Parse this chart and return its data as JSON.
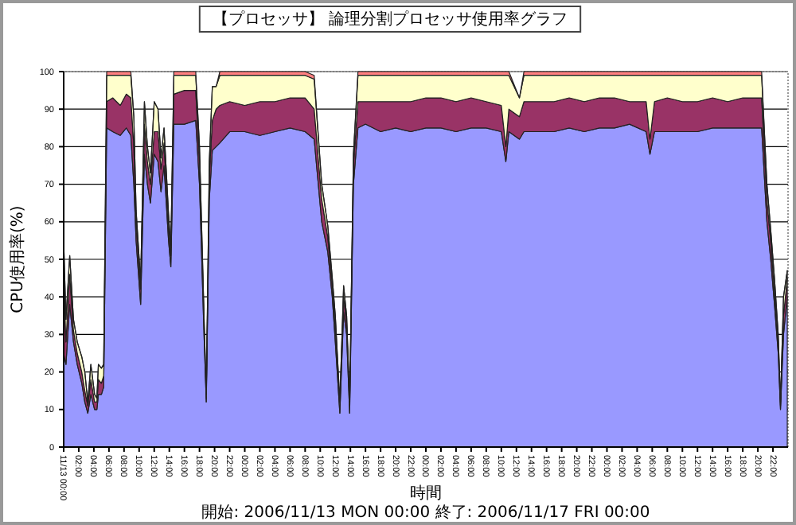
{
  "chart_data": {
    "type": "area",
    "stacked": true,
    "title": "【プロセッサ】 論理分割プロセッサ使用率グラフ",
    "xlabel": "時間",
    "ylabel": "CPU使用率(%)",
    "annotations": [
      "開始: 2006/11/13 MON 00:00  終了: 2006/11/17 FRI 00:00"
    ],
    "x": [
      "2006-11-13T00:00",
      "2006-11-13T00:18",
      "2006-11-13T00:48",
      "2006-11-13T01:18",
      "2006-11-13T01:48",
      "2006-11-13T02:24",
      "2006-11-13T02:48",
      "2006-11-13T03:12",
      "2006-11-13T03:36",
      "2006-11-13T04:06",
      "2006-11-13T04:24",
      "2006-11-13T04:36",
      "2006-11-13T05:00",
      "2006-11-13T05:18",
      "2006-11-13T05:42",
      "2006-11-13T06:30",
      "2006-11-13T07:30",
      "2006-11-13T08:18",
      "2006-11-13T08:54",
      "2006-11-13T09:18",
      "2006-11-13T09:36",
      "2006-11-13T10:12",
      "2006-11-13T10:42",
      "2006-11-13T11:06",
      "2006-11-13T11:30",
      "2006-11-13T12:00",
      "2006-11-13T12:30",
      "2006-11-13T12:54",
      "2006-11-13T13:18",
      "2006-11-13T13:54",
      "2006-11-13T14:12",
      "2006-11-13T14:36",
      "2006-11-13T16:00",
      "2006-11-13T17:30",
      "2006-11-13T18:00",
      "2006-11-13T18:36",
      "2006-11-13T18:54",
      "2006-11-13T19:18",
      "2006-11-13T19:42",
      "2006-11-13T20:12",
      "2006-11-13T20:42",
      "2006-11-13T22:00",
      "2006-11-14T00:00",
      "2006-11-14T02:00",
      "2006-11-14T04:00",
      "2006-11-14T06:00",
      "2006-11-14T08:00",
      "2006-11-14T09:12",
      "2006-11-14T10:12",
      "2006-11-14T11:00",
      "2006-11-14T11:36",
      "2006-11-14T12:00",
      "2006-11-14T12:36",
      "2006-11-14T13:06",
      "2006-11-14T13:30",
      "2006-11-14T13:54",
      "2006-11-14T14:24",
      "2006-11-14T15:00",
      "2006-11-14T16:00",
      "2006-11-14T18:00",
      "2006-11-14T20:00",
      "2006-11-14T22:00",
      "2006-11-15T00:00",
      "2006-11-15T02:00",
      "2006-11-15T04:00",
      "2006-11-15T06:00",
      "2006-11-15T08:00",
      "2006-11-15T10:00",
      "2006-11-15T10:36",
      "2006-11-15T11:00",
      "2006-11-15T12:24",
      "2006-11-15T13:00",
      "2006-11-15T15:00",
      "2006-11-15T17:00",
      "2006-11-15T19:00",
      "2006-11-15T21:00",
      "2006-11-15T23:00",
      "2006-11-16T01:00",
      "2006-11-16T03:00",
      "2006-11-16T05:12",
      "2006-11-16T05:42",
      "2006-11-16T06:18",
      "2006-11-16T08:00",
      "2006-11-16T10:00",
      "2006-11-16T12:00",
      "2006-11-16T14:00",
      "2006-11-16T16:00",
      "2006-11-16T18:00",
      "2006-11-16T20:30",
      "2006-11-16T21:12",
      "2006-11-16T21:42",
      "2006-11-16T22:12",
      "2006-11-16T22:42",
      "2006-11-16T23:00",
      "2006-11-16T23:24",
      "2006-11-16T23:54"
    ],
    "series": [
      {
        "color": "#9999ff",
        "values": [
          25,
          22,
          38,
          28,
          22,
          17,
          12,
          9,
          14,
          10,
          10,
          14,
          14,
          16,
          85,
          84,
          83,
          85,
          83,
          70,
          55,
          38,
          78,
          70,
          65,
          78,
          76,
          68,
          75,
          55,
          48,
          86,
          86,
          87,
          70,
          30,
          12,
          66,
          79,
          80,
          81,
          84,
          84,
          83,
          84,
          85,
          84,
          82,
          60,
          52,
          40,
          28,
          9,
          36,
          30,
          9,
          70,
          85,
          86,
          84,
          85,
          84,
          85,
          85,
          84,
          85,
          85,
          84,
          76,
          84,
          82,
          84,
          84,
          84,
          85,
          84,
          85,
          85,
          86,
          84,
          78,
          84,
          84,
          84,
          84,
          85,
          85,
          85,
          85,
          60,
          50,
          38,
          25,
          10,
          30,
          40
        ]
      },
      {
        "color": "#993366",
        "values": [
          20,
          6,
          8,
          3,
          3,
          3,
          3,
          2,
          4,
          2,
          2,
          4,
          3,
          3,
          7,
          9,
          8,
          9,
          10,
          10,
          5,
          4,
          8,
          6,
          5,
          6,
          8,
          6,
          6,
          4,
          3,
          8,
          9,
          8,
          6,
          3,
          1,
          6,
          8,
          10,
          10,
          8,
          7,
          9,
          8,
          8,
          9,
          8,
          6,
          4,
          3,
          3,
          2,
          4,
          3,
          2,
          5,
          7,
          6,
          8,
          7,
          8,
          8,
          8,
          8,
          8,
          7,
          7,
          4,
          6,
          6,
          8,
          8,
          8,
          8,
          8,
          8,
          8,
          6,
          8,
          4,
          8,
          9,
          8,
          8,
          8,
          7,
          8,
          8,
          6,
          5,
          3,
          3,
          1,
          5,
          5
        ]
      },
      {
        "color": "#ffffcc",
        "values": [
          10,
          6,
          5,
          3,
          3,
          4,
          5,
          1,
          4,
          2,
          1,
          4,
          4,
          3,
          7,
          6,
          8,
          5,
          6,
          8,
          3,
          2,
          6,
          4,
          3,
          8,
          6,
          3,
          4,
          3,
          2,
          5,
          4,
          4,
          4,
          2,
          1,
          4,
          9,
          6,
          8,
          7,
          8,
          7,
          7,
          6,
          6,
          8,
          4,
          3,
          2,
          4,
          1,
          3,
          2,
          1,
          3,
          7,
          7,
          7,
          7,
          7,
          6,
          6,
          7,
          6,
          7,
          8,
          19,
          9,
          5,
          7,
          7,
          7,
          6,
          7,
          6,
          6,
          7,
          7,
          17,
          7,
          6,
          7,
          7,
          6,
          7,
          6,
          6,
          4,
          3,
          4,
          2,
          1,
          5,
          2
        ]
      },
      {
        "color": "#ff8080",
        "values": [
          0,
          0,
          0,
          0,
          0,
          0,
          0,
          0,
          0,
          0,
          0,
          0,
          0,
          0,
          1,
          1,
          1,
          1,
          1,
          0,
          0,
          0,
          0,
          0,
          0,
          0,
          0,
          0,
          0,
          0,
          0,
          1,
          1,
          1,
          0,
          0,
          0,
          0,
          0,
          0,
          1,
          1,
          1,
          1,
          1,
          1,
          1,
          1,
          0,
          0,
          0,
          0,
          0,
          0,
          0,
          0,
          0,
          1,
          1,
          1,
          1,
          1,
          1,
          1,
          1,
          1,
          1,
          1,
          1,
          1,
          0,
          1,
          1,
          1,
          1,
          1,
          1,
          1,
          1,
          1,
          1,
          1,
          1,
          1,
          1,
          1,
          1,
          1,
          1,
          0,
          0,
          0,
          0,
          0,
          0,
          0
        ]
      }
    ],
    "xlim": [
      "2006-11-13T00:00",
      "2006-11-17T00:00"
    ],
    "ylim": [
      0,
      100
    ],
    "yticks": [
      0,
      10,
      20,
      30,
      40,
      50,
      60,
      70,
      80,
      90,
      100
    ],
    "grid": "y",
    "xticks": [
      {
        "value": "2006-11-13T00:00",
        "label": "11/13 00:00"
      },
      {
        "value": "2006-11-13T02:00",
        "label": "02:00"
      },
      {
        "value": "2006-11-13T04:00",
        "label": "04:00"
      },
      {
        "value": "2006-11-13T06:00",
        "label": "06:00"
      },
      {
        "value": "2006-11-13T08:00",
        "label": "08:00"
      },
      {
        "value": "2006-11-13T10:00",
        "label": "10:00"
      },
      {
        "value": "2006-11-13T12:00",
        "label": "12:00"
      },
      {
        "value": "2006-11-13T14:00",
        "label": "14:00"
      },
      {
        "value": "2006-11-13T16:00",
        "label": "16:00"
      },
      {
        "value": "2006-11-13T18:00",
        "label": "18:00"
      },
      {
        "value": "2006-11-13T20:00",
        "label": "20:00"
      },
      {
        "value": "2006-11-13T22:00",
        "label": "22:00"
      },
      {
        "value": "2006-11-14T00:00",
        "label": "00:00"
      },
      {
        "value": "2006-11-14T02:00",
        "label": "02:00"
      },
      {
        "value": "2006-11-14T04:00",
        "label": "04:00"
      },
      {
        "value": "2006-11-14T06:00",
        "label": "06:00"
      },
      {
        "value": "2006-11-14T08:00",
        "label": "08:00"
      },
      {
        "value": "2006-11-14T10:00",
        "label": "10:00"
      },
      {
        "value": "2006-11-14T12:00",
        "label": "12:00"
      },
      {
        "value": "2006-11-14T14:00",
        "label": "14:00"
      },
      {
        "value": "2006-11-14T16:00",
        "label": "16:00"
      },
      {
        "value": "2006-11-14T18:00",
        "label": "18:00"
      },
      {
        "value": "2006-11-14T20:00",
        "label": "20:00"
      },
      {
        "value": "2006-11-14T22:00",
        "label": "22:00"
      },
      {
        "value": "2006-11-15T00:00",
        "label": "00:00"
      },
      {
        "value": "2006-11-15T02:00",
        "label": "02:00"
      },
      {
        "value": "2006-11-15T04:00",
        "label": "04:00"
      },
      {
        "value": "2006-11-15T06:00",
        "label": "06:00"
      },
      {
        "value": "2006-11-15T08:00",
        "label": "08:00"
      },
      {
        "value": "2006-11-15T10:00",
        "label": "10:00"
      },
      {
        "value": "2006-11-15T12:00",
        "label": "12:00"
      },
      {
        "value": "2006-11-15T14:00",
        "label": "14:00"
      },
      {
        "value": "2006-11-15T16:00",
        "label": "16:00"
      },
      {
        "value": "2006-11-15T18:00",
        "label": "18:00"
      },
      {
        "value": "2006-11-15T20:00",
        "label": "20:00"
      },
      {
        "value": "2006-11-15T22:00",
        "label": "22:00"
      },
      {
        "value": "2006-11-16T00:00",
        "label": "00:00"
      },
      {
        "value": "2006-11-16T02:00",
        "label": "02:00"
      },
      {
        "value": "2006-11-16T04:00",
        "label": "04:00"
      },
      {
        "value": "2006-11-16T06:00",
        "label": "06:00"
      },
      {
        "value": "2006-11-16T08:00",
        "label": "08:00"
      },
      {
        "value": "2006-11-16T10:00",
        "label": "10:00"
      },
      {
        "value": "2006-11-16T12:00",
        "label": "12:00"
      },
      {
        "value": "2006-11-16T14:00",
        "label": "14:00"
      },
      {
        "value": "2006-11-16T16:00",
        "label": "16:00"
      },
      {
        "value": "2006-11-16T18:00",
        "label": "18:00"
      },
      {
        "value": "2006-11-16T20:00",
        "label": "20:00"
      },
      {
        "value": "2006-11-16T22:00",
        "label": "22:00"
      }
    ]
  }
}
